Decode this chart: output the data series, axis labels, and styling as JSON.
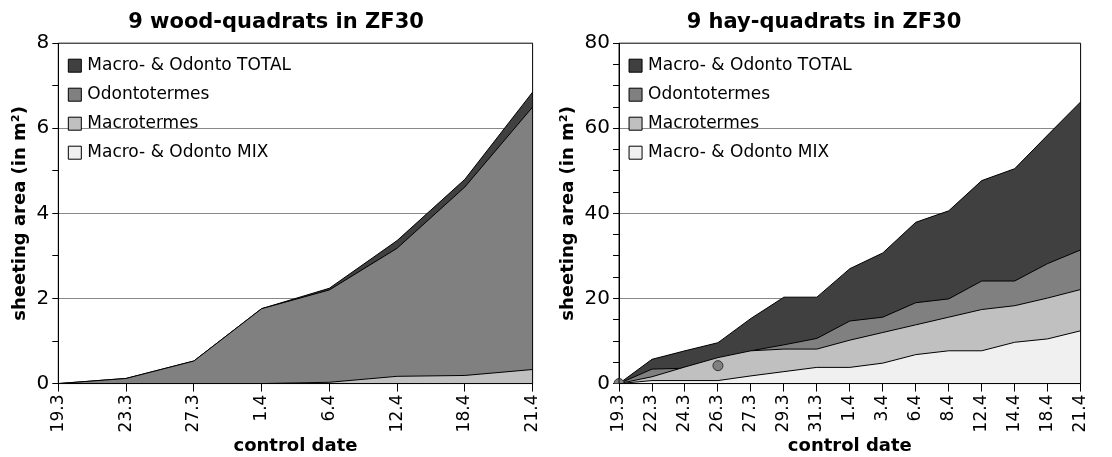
{
  "chart_data": [
    {
      "type": "area",
      "title": "9 wood-quadrats in ZF30",
      "xlabel": "control date",
      "ylabel": "sheeting area (in m²)",
      "categories": [
        "19.3",
        "23.3",
        "27.3",
        "1.4",
        "6.4",
        "12.4",
        "18.4",
        "21.4"
      ],
      "series": [
        {
          "name": "Macro- & Odonto TOTAL",
          "color": "#404040",
          "values": [
            0,
            0.12,
            0.53,
            1.76,
            2.24,
            3.36,
            4.8,
            6.85
          ]
        },
        {
          "name": "Odontotermes",
          "color": "#808080",
          "values": [
            0,
            0.12,
            0.53,
            1.76,
            2.2,
            3.18,
            4.62,
            6.5
          ]
        },
        {
          "name": "Macrotermes",
          "color": "#c0c0c0",
          "values": [
            0,
            0,
            0,
            0,
            0.03,
            0.17,
            0.19,
            0.33
          ]
        },
        {
          "name": "Macro- & Odonto MIX",
          "color": "#f0f0f0",
          "values": [
            null,
            null,
            null,
            null,
            null,
            null,
            null,
            null
          ]
        }
      ],
      "ylim": [
        0,
        8
      ],
      "yticks": [
        0,
        {
          "value": 1,
          "label": null
        },
        2,
        {
          "value": 3,
          "label": null
        },
        4,
        {
          "value": 5,
          "label": null
        },
        6,
        {
          "value": 7,
          "label": null
        },
        8
      ],
      "grid": "y",
      "legend": "top left"
    },
    {
      "type": "area",
      "title": "9 hay-quadrats in ZF30",
      "xlabel": "control date",
      "ylabel": "sheeting area (in m²)",
      "categories": [
        "19.3",
        "22.3",
        "24.3",
        "26.3",
        "27.3",
        "29.3",
        "31.3",
        "1.4",
        "3.4",
        "6.4",
        "8.4",
        "12.4",
        "14.4",
        "18.4",
        "21.4"
      ],
      "series": [
        {
          "name": "Macro- & Odonto TOTAL",
          "color": "#404040",
          "values": [
            0,
            5.7,
            7.7,
            9.6,
            15.3,
            20.3,
            20.3,
            27,
            30.7,
            37.9,
            40.6,
            47.7,
            50.5,
            58.4,
            66.2
          ]
        },
        {
          "name": "Odontotermes",
          "color": "#808080",
          "values": [
            0,
            3.4,
            3.6,
            4.2,
            7.7,
            9.1,
            10.6,
            14.7,
            15.6,
            19,
            19.9,
            24.1,
            24.1,
            28.2,
            31.4
          ]
        },
        {
          "name": "Macrotermes",
          "color": "#c0c0c0",
          "values": [
            0,
            1.6,
            3.9,
            6.1,
            7.7,
            8.1,
            8.1,
            10.2,
            12,
            13.8,
            15.6,
            17.4,
            18.3,
            20.1,
            22.1
          ]
        },
        {
          "name": "Macro- & Odonto MIX",
          "color": "#f0f0f0",
          "values": [
            0,
            0.7,
            0.7,
            0.7,
            1.8,
            2.8,
            3.8,
            3.8,
            4.8,
            6.8,
            7.7,
            7.7,
            9.7,
            10.5,
            12.4
          ]
        },
        {
          "type": "scatter",
          "x": [
            "19.3",
            "26.3"
          ],
          "values": [
            0,
            4.2
          ],
          "color": "#808080",
          "marker": "circle"
        }
      ],
      "ylim": [
        0,
        80
      ],
      "yticks": [
        0,
        {
          "value": 5,
          "label": null
        },
        {
          "value": 10,
          "label": null
        },
        {
          "value": 15,
          "label": null
        },
        20,
        {
          "value": 25,
          "label": null
        },
        {
          "value": 30,
          "label": null
        },
        {
          "value": 35,
          "label": null
        },
        40,
        {
          "value": 45,
          "label": null
        },
        {
          "value": 50,
          "label": null
        },
        {
          "value": 55,
          "label": null
        },
        60,
        {
          "value": 65,
          "label": null
        },
        {
          "value": 70,
          "label": null
        },
        {
          "value": 75,
          "label": null
        },
        80
      ],
      "grid": "y",
      "legend": "top left"
    }
  ]
}
